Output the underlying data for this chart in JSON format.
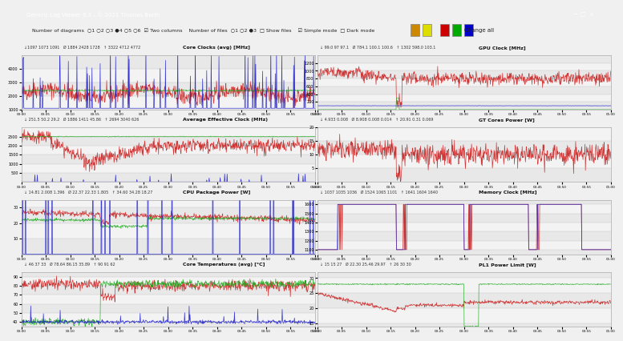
{
  "title_bar": "Generic Log Viewer 6.1 - © 2021 Thomas Barth",
  "toolbar_bg": "#f0f0f0",
  "chart_bg": "#e8e8e8",
  "chart_inner_bg": "#ffffff",
  "alt_row_bg": "#d8d8d8",
  "grid_color": "#c0c0c0",
  "panels": [
    {
      "title": "Core Clocks (avg) [MHz]",
      "subtitle": "↓1097 1073 1091   Ø 1884 2428 1728   ↑ 3322 4712 4772",
      "ylim": [
        1000,
        5000
      ],
      "yticks": [
        1000,
        2000,
        3000,
        4000
      ],
      "red_style": "noisy_high",
      "green_style": "flat_high",
      "blue_style": "spiky"
    },
    {
      "title": "GPU Clock [MHz]",
      "subtitle": "↓ 99.0 97 97.1   Ø 784.1 100.1 100.6   ↑ 1302 598.0 103.1",
      "ylim": [
        0,
        1400
      ],
      "yticks": [
        200,
        400,
        600,
        800,
        1000,
        1200
      ],
      "red_style": "gpu_clock",
      "green_style": "tiny_spike",
      "blue_style": "flat_low"
    },
    {
      "title": "Average Effective Clock (MHz)",
      "subtitle": "↓ 251.5 50.2 29.2   Ø 1886 1411 45.86   ↑ 2694 3040 626",
      "ylim": [
        0,
        3000
      ],
      "yticks": [
        500,
        1000,
        1500,
        2000,
        2500
      ],
      "red_style": "avg_eff",
      "green_style": "flat_2500",
      "blue_style": "sparse_spikes"
    },
    {
      "title": "GT Cores Power [W]",
      "subtitle": "↓ 4.933 0.008   Ø 8.908 0.008 0.014   ↑ 20.91 0.31 0.069",
      "ylim": [
        0,
        20
      ],
      "yticks": [
        5,
        10,
        15,
        20
      ],
      "red_style": "power_noisy",
      "green_style": "none",
      "blue_style": "none"
    },
    {
      "title": "CPU Package Power [W]",
      "subtitle": "↓ 14.81 2.008 1.396   Ø 22.37 22.33 1.805   ↑ 34.60 34.28 18.27",
      "ylim": [
        0,
        35
      ],
      "yticks": [
        10,
        20,
        30
      ],
      "red_style": "cpu_power",
      "green_style": "cpu_power_green",
      "blue_style": "sparse_spikes"
    },
    {
      "title": "Memory Clock [MHz]",
      "subtitle": "↓ 1037 1035 1036   Ø 1524 1065 1101   ↑ 1641 1604 1640",
      "ylim": [
        1050,
        1650
      ],
      "yticks": [
        1100,
        1200,
        1300,
        1400,
        1500,
        1600
      ],
      "red_style": "mem_clock",
      "green_style": "none",
      "blue_style": "mem_blue"
    },
    {
      "title": "Core Temperatures (avg) [°C]",
      "subtitle": "↓ 46 37 33   Ø 78.64 86.15 35.89   ↑ 90 91 62",
      "ylim": [
        35,
        95
      ],
      "yticks": [
        40,
        50,
        60,
        70,
        80,
        90
      ],
      "red_style": "temp",
      "green_style": "temp_green",
      "blue_style": "temp_blue"
    },
    {
      "title": "PL1 Power Limit [W]",
      "subtitle": "↓ 15 15 27   Ø 22.30 25.46 29.97   ↑ 26 30 30",
      "ylim": [
        14,
        32
      ],
      "yticks": [
        15,
        20,
        25,
        30
      ],
      "red_style": "pl1_red",
      "green_style": "pl1_green",
      "blue_style": "none"
    }
  ],
  "colors": {
    "red": "#cc0000",
    "green": "#00aa00",
    "blue": "#0000cc",
    "dark_red": "#880000"
  },
  "time_hours": 1.0,
  "n_points": 720
}
